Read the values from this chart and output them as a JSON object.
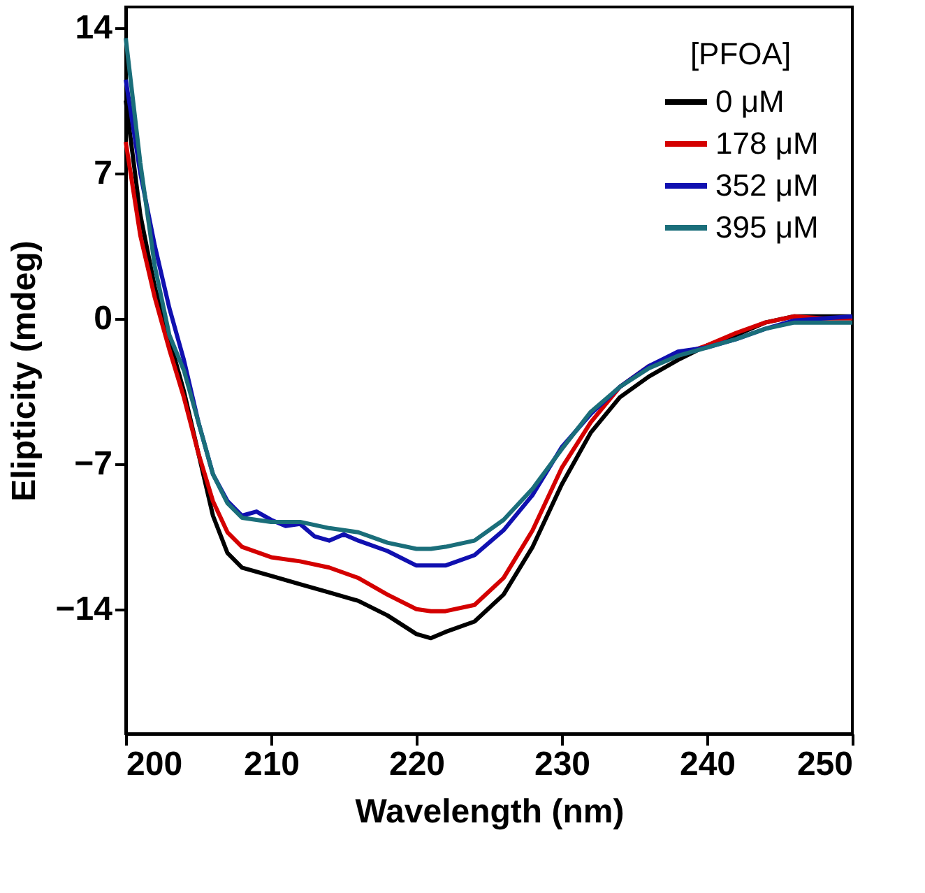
{
  "chart_data": {
    "type": "line",
    "xlabel": "Wavelength (nm)",
    "ylabel": "Elipticity (mdeg)",
    "legend_title": "[PFOA]",
    "legend": "top right",
    "grid": false,
    "marker": "none",
    "line_style": "solid",
    "xlim": [
      200,
      250
    ],
    "xticks": [
      200,
      210,
      220,
      230,
      240,
      250
    ],
    "ylim": [
      -20,
      15
    ],
    "yticks": [
      -14,
      -7,
      0,
      7,
      14
    ],
    "x": [
      200,
      201,
      202,
      203,
      204,
      205,
      206,
      207,
      208,
      210,
      212,
      214,
      216,
      218,
      220,
      221,
      222,
      224,
      226,
      228,
      230,
      232,
      234,
      236,
      238,
      240,
      242,
      244,
      246,
      248,
      250
    ],
    "series": [
      {
        "name": "0 μM",
        "color": "#000000",
        "values": [
          10.5,
          5,
          1.5,
          -1,
          -3.5,
          -6.5,
          -9.5,
          -11.3,
          -12,
          -12.4,
          -12.8,
          -13.2,
          -13.6,
          -14.3,
          -15.2,
          -15.4,
          -15.1,
          -14.6,
          -13.3,
          -11,
          -8,
          -5.5,
          -3.8,
          -2.8,
          -2,
          -1.3,
          -0.8,
          -0.2,
          0.1,
          0.1,
          0.1
        ]
      },
      {
        "name": "178 μM",
        "color": "#d40000",
        "values": [
          8.5,
          4,
          1,
          -1.5,
          -3.8,
          -6.5,
          -8.8,
          -10.3,
          -11,
          -11.5,
          -11.7,
          -12,
          -12.5,
          -13.3,
          -14,
          -14.1,
          -14.1,
          -13.8,
          -12.5,
          -10.2,
          -7.2,
          -5,
          -3.3,
          -2.3,
          -1.8,
          -1.3,
          -0.7,
          -0.2,
          0.1,
          0,
          0
        ]
      },
      {
        "name": "352 μM",
        "color": "#1010b0",
        "x": [
          200,
          201,
          202,
          203,
          204,
          205,
          206,
          207,
          208,
          209,
          210,
          211,
          212,
          213,
          214,
          215,
          216,
          218,
          220,
          222,
          224,
          226,
          228,
          230,
          232,
          234,
          236,
          238,
          240,
          242,
          244,
          246,
          248,
          250
        ],
        "values": [
          11.5,
          7,
          3.5,
          0.5,
          -2,
          -5,
          -7.5,
          -8.8,
          -9.5,
          -9.3,
          -9.7,
          -10,
          -9.9,
          -10.5,
          -10.7,
          -10.4,
          -10.7,
          -11.2,
          -11.9,
          -11.9,
          -11.4,
          -10.2,
          -8.5,
          -6.2,
          -4.6,
          -3.3,
          -2.3,
          -1.6,
          -1.4,
          -1,
          -0.5,
          -0.1,
          0,
          0.1
        ]
      },
      {
        "name": "395 μM",
        "color": "#1a6e7a",
        "values": [
          13.5,
          7.5,
          2.5,
          -0.8,
          -2.5,
          -5,
          -7.5,
          -8.9,
          -9.6,
          -9.8,
          -9.8,
          -10.1,
          -10.3,
          -10.8,
          -11.1,
          -11.1,
          -11,
          -10.7,
          -9.7,
          -8.2,
          -6.3,
          -4.5,
          -3.3,
          -2.4,
          -1.8,
          -1.4,
          -1,
          -0.5,
          -0.2,
          -0.2,
          -0.2
        ]
      }
    ]
  }
}
